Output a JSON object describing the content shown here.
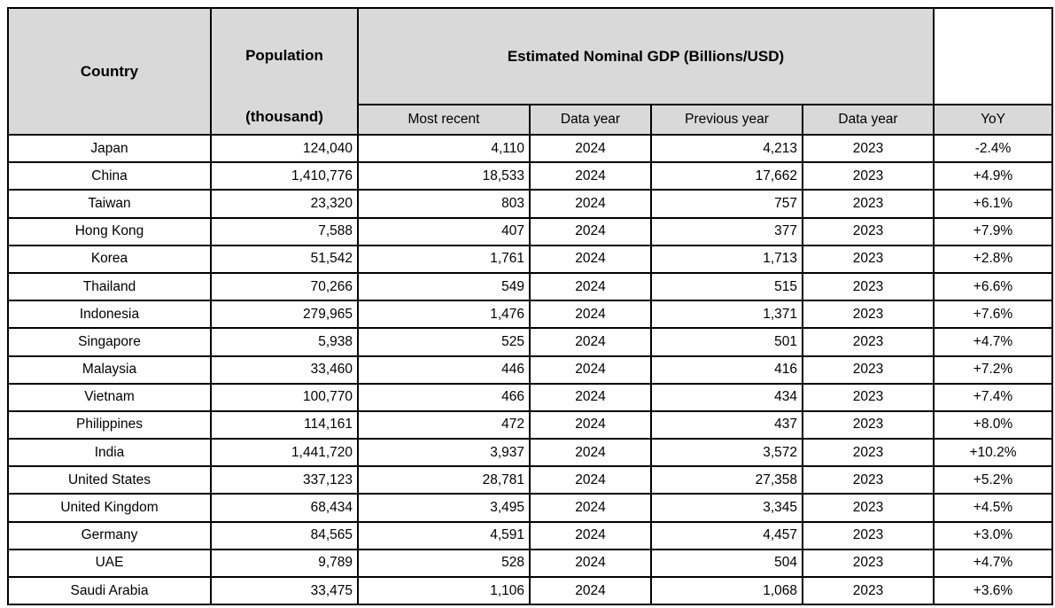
{
  "header": {
    "country_label": "Country",
    "population_label": "Population",
    "population_unit": "(thousand)",
    "gdp_group_label": "Estimated Nominal GDP (Billions/USD)",
    "subheaders": [
      "Most recent",
      "Data year",
      "Previous year",
      "Data year",
      "YoY"
    ]
  },
  "colors": {
    "header_fill": "#d9d9d9",
    "border": "#000000",
    "text": "#000000",
    "background": "#ffffff"
  },
  "chart_data": {
    "type": "table",
    "title": "Estimated Nominal GDP (Billions/USD)",
    "columns": [
      "Country",
      "Population (thousand)",
      "Most recent",
      "Data year",
      "Previous year",
      "Data year",
      "YoY"
    ],
    "rows": [
      [
        "Japan",
        "124,040",
        "4,110",
        "2024",
        "4,213",
        "2023",
        "-2.4%"
      ],
      [
        "China",
        "1,410,776",
        "18,533",
        "2024",
        "17,662",
        "2023",
        "+4.9%"
      ],
      [
        "Taiwan",
        "23,320",
        "803",
        "2024",
        "757",
        "2023",
        "+6.1%"
      ],
      [
        "Hong Kong",
        "7,588",
        "407",
        "2024",
        "377",
        "2023",
        "+7.9%"
      ],
      [
        "Korea",
        "51,542",
        "1,761",
        "2024",
        "1,713",
        "2023",
        "+2.8%"
      ],
      [
        "Thailand",
        "70,266",
        "549",
        "2024",
        "515",
        "2023",
        "+6.6%"
      ],
      [
        "Indonesia",
        "279,965",
        "1,476",
        "2024",
        "1,371",
        "2023",
        "+7.6%"
      ],
      [
        "Singapore",
        "5,938",
        "525",
        "2024",
        "501",
        "2023",
        "+4.7%"
      ],
      [
        "Malaysia",
        "33,460",
        "446",
        "2024",
        "416",
        "2023",
        "+7.2%"
      ],
      [
        "Vietnam",
        "100,770",
        "466",
        "2024",
        "434",
        "2023",
        "+7.4%"
      ],
      [
        "Philippines",
        "114,161",
        "472",
        "2024",
        "437",
        "2023",
        "+8.0%"
      ],
      [
        "India",
        "1,441,720",
        "3,937",
        "2024",
        "3,572",
        "2023",
        "+10.2%"
      ],
      [
        "United States",
        "337,123",
        "28,781",
        "2024",
        "27,358",
        "2023",
        "+5.2%"
      ],
      [
        "United Kingdom",
        "68,434",
        "3,495",
        "2024",
        "3,345",
        "2023",
        "+4.5%"
      ],
      [
        "Germany",
        "84,565",
        "4,591",
        "2024",
        "4,457",
        "2023",
        "+3.0%"
      ],
      [
        "UAE",
        "9,789",
        "528",
        "2024",
        "504",
        "2023",
        "+4.7%"
      ],
      [
        "Saudi Arabia",
        "33,475",
        "1,106",
        "2024",
        "1,068",
        "2023",
        "+3.6%"
      ]
    ]
  }
}
